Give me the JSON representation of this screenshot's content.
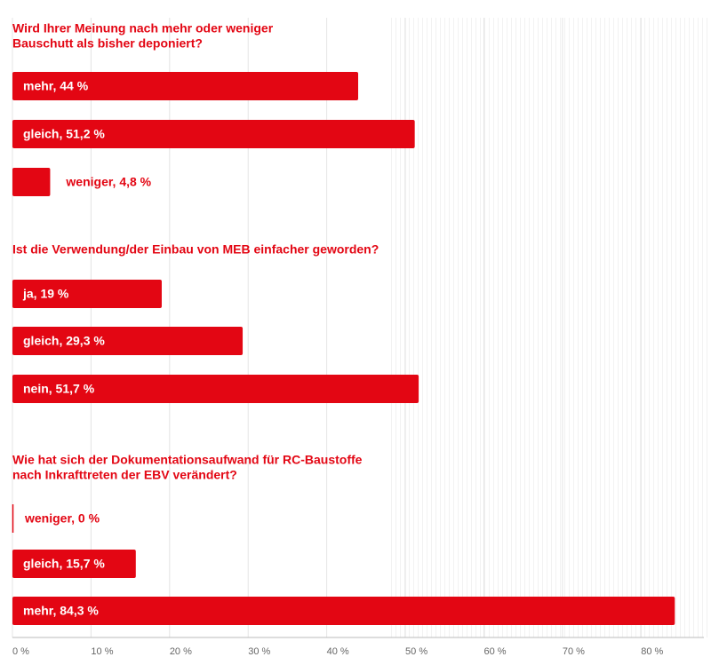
{
  "chart_data": [
    {
      "type": "bar",
      "title": [
        "Wird Ihrer Meinung nach mehr oder weniger",
        "Bauschutt als bisher deponiert?"
      ],
      "values": [
        44,
        51.2,
        4.8
      ],
      "value_labels": [
        "mehr, 44 %",
        "gleich, 51,2 %",
        "weniger, 4,8 %"
      ],
      "color": "#e30613"
    },
    {
      "type": "bar",
      "title": [
        "Ist die Verwendung/der Einbau von MEB einfacher geworden?"
      ],
      "values": [
        19,
        29.3,
        51.7
      ],
      "value_labels": [
        "ja, 19 %",
        "gleich, 29,3 %",
        "nein, 51,7 %"
      ],
      "color": "#e30613"
    },
    {
      "type": "bar",
      "title": [
        "Wie hat sich der Dokumentationsaufwand für RC-Baustoffe",
        "nach Inkrafttreten der EBV verändert?"
      ],
      "values": [
        0,
        15.7,
        84.3
      ],
      "value_labels": [
        "weniger, 0 %",
        "gleich, 15,7 %",
        "mehr, 84,3 %"
      ],
      "color": "#e30613",
      "xlim": [
        0,
        88
      ],
      "xticks": [
        {
          "value": 0,
          "label": "0 %"
        },
        {
          "value": 10,
          "label": "10 %"
        },
        {
          "value": 20,
          "label": "20 %"
        },
        {
          "value": 30,
          "label": "30 %"
        },
        {
          "value": 40,
          "label": "40 %"
        },
        {
          "value": 50,
          "label": "50 %"
        },
        {
          "value": 60,
          "label": "60 %"
        },
        {
          "value": 70,
          "label": "70 %"
        },
        {
          "value": 80,
          "label": "80 %"
        }
      ],
      "grid": true
    }
  ]
}
